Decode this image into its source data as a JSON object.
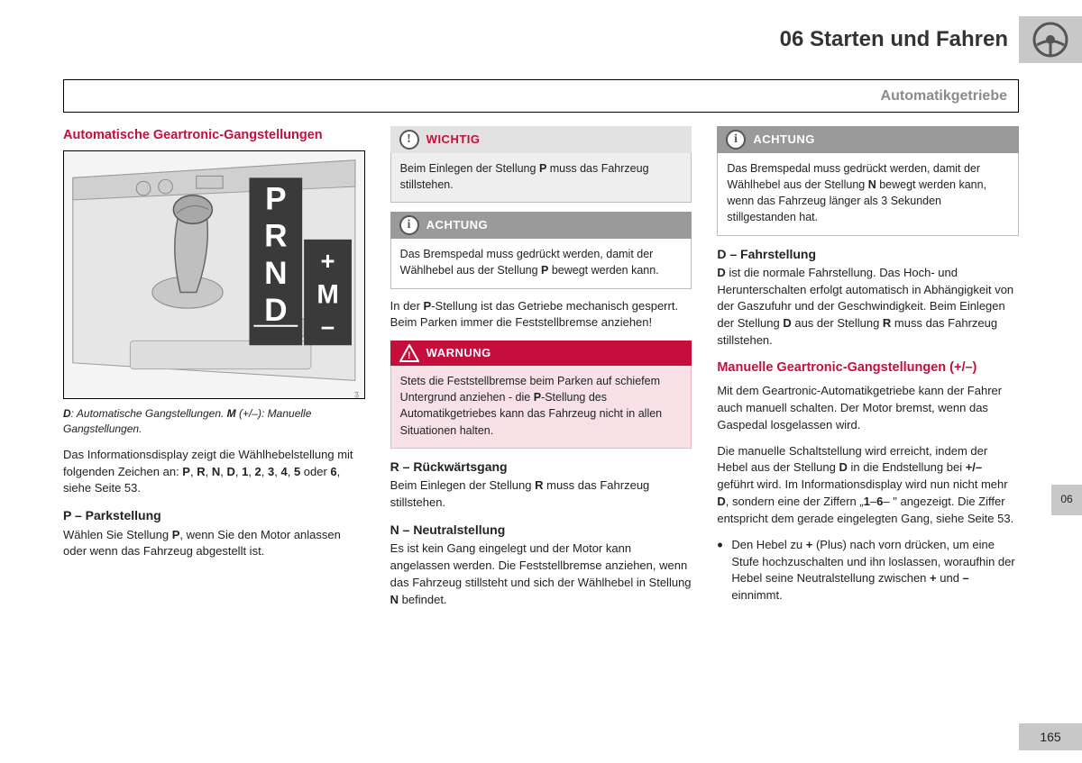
{
  "header": {
    "chapter": "06 Starten und Fahren"
  },
  "section": {
    "title": "Automatikgetriebe"
  },
  "sideTab": "06",
  "pageNumber": "165",
  "col1": {
    "heading": "Automatische Geartronic-Gangstellungen",
    "caption_html": "<b>D</b>: Automatische Gangstellungen. <b>M</b> (+/–): Manuelle Gangstellungen.",
    "p1_html": "Das Informationsdisplay zeigt die Wählhebelstellung mit folgenden Zeichen an: <b>P</b>, <b>R</b>, <b>N</b>, <b>D</b>, <b>1</b>, <b>2</b>, <b>3</b>, <b>4</b>, <b>5</b> oder <b>6</b>, siehe Seite 53.",
    "sub_p": "P – Parkstellung",
    "p2_html": "Wählen Sie Stellung <b>P</b>, wenn Sie den Motor anlassen oder wenn das Fahrzeug abgestellt ist.",
    "gearLabels": {
      "p": "P",
      "r": "R",
      "n": "N",
      "d": "D",
      "m": "M",
      "plus": "+",
      "minus": "–"
    },
    "figCode": "G018264"
  },
  "col2": {
    "wichtig": {
      "label": "WICHTIG",
      "body_html": "Beim Einlegen der Stellung <b>P</b> muss das Fahrzeug stillstehen."
    },
    "achtung1": {
      "label": "ACHTUNG",
      "body_html": "Das Bremspedal muss gedrückt werden, damit der Wählhebel aus der Stellung <b>P</b> bewegt werden kann."
    },
    "p1_html": "In der <b>P</b>-Stellung ist das Getriebe mechanisch gesperrt. Beim Parken immer die Feststellbremse anziehen!",
    "warnung": {
      "label": "WARNUNG",
      "body_html": "Stets die Feststellbremse beim Parken auf schiefem Untergrund anziehen - die <b>P</b>-Stellung des Automatikgetriebes kann das Fahrzeug nicht in allen Situationen halten."
    },
    "sub_r": "R – Rückwärtsgang",
    "p_r_html": "Beim Einlegen der Stellung <b>R</b> muss das Fahrzeug stillstehen.",
    "sub_n": "N – Neutralstellung",
    "p_n_html": "Es ist kein Gang eingelegt und der Motor kann angelassen werden. Die Feststellbremse anziehen, wenn das Fahrzeug stillsteht und sich der Wählhebel in Stellung <b>N</b> befindet."
  },
  "col3": {
    "achtung2": {
      "label": "ACHTUNG",
      "body_html": "Das Bremspedal muss gedrückt werden, damit der Wählhebel aus der Stellung <b>N</b> bewegt werden kann, wenn das Fahrzeug länger als 3 Sekunden stillgestanden hat."
    },
    "sub_d": "D – Fahrstellung",
    "p_d_html": "<b>D</b> ist die normale Fahrstellung. Das Hoch- und Herunterschalten erfolgt automatisch in Abhängigkeit von der Gaszufuhr und der Geschwindigkeit. Beim Einlegen der Stellung <b>D</b> aus der Stellung <b>R</b> muss das Fahrzeug stillstehen.",
    "red2": "Manuelle Geartronic-Gangstellungen (+/–)",
    "p_m1_html": "Mit dem Geartronic-Automatikgetriebe kann der Fahrer auch manuell schalten. Der Motor bremst, wenn das Gaspedal losgelassen wird.",
    "p_m2_html": "Die manuelle Schaltstellung wird erreicht, indem der Hebel aus der Stellung <b>D</b> in die Endstellung bei <b>+/–</b> geführt wird. Im Informationsdisplay wird nun nicht mehr <b>D</b>, sondern eine der Ziffern „<b>1</b>–<b>6</b>– \" angezeigt. Die Ziffer entspricht dem gerade eingelegten Gang, siehe Seite 53.",
    "bullet1_html": "Den Hebel zu <b>+</b> (Plus) nach vorn drücken, um eine Stufe hochzuschalten und ihn loslassen, woraufhin der Hebel seine Neutralstellung zwischen <b>+</b> und <b>–</b> einnimmt."
  },
  "colors": {
    "accent_red": "#c50e3c",
    "grey_box": "#c8c8c8",
    "grey_head": "#9a9a9a",
    "light_head": "#e2e2e2",
    "light_body": "#eee",
    "pink_body": "#f7e1e6"
  }
}
